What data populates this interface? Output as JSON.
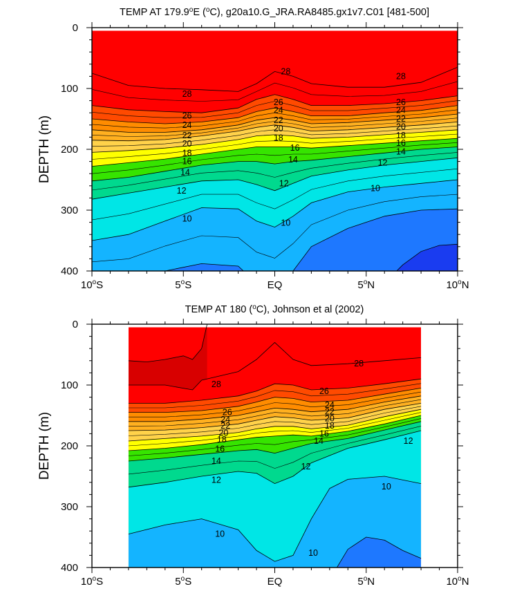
{
  "chart_data": [
    {
      "type": "contour",
      "title_prefix": "TEMP AT 179.9",
      "title_sup1": "o",
      "title_mid": "E (",
      "title_sup2": "o",
      "title_suffix": "C), g20a10.G_JRA.RA8485.gx1v7.C01 [481-500]",
      "ylabel": "DEPTH (m)",
      "xlim": [
        -10,
        10
      ],
      "ylim": [
        0,
        400
      ],
      "xticks": [
        {
          "value": -10,
          "label": "10",
          "suffix": "S"
        },
        {
          "value": -5,
          "label": "5",
          "suffix": "S"
        },
        {
          "value": 0,
          "label": "EQ",
          "suffix": ""
        },
        {
          "value": 5,
          "label": "5",
          "suffix": "N"
        },
        {
          "value": 10,
          "label": "10",
          "suffix": "N"
        }
      ],
      "yticks": [
        0,
        100,
        200,
        300,
        400
      ],
      "data_extent_x": [
        -10,
        10
      ],
      "isotherms": [
        {
          "level": 28,
          "x": [
            -10,
            -8,
            -6,
            -4,
            -2,
            -1,
            0,
            1,
            2,
            4,
            6,
            8,
            10
          ],
          "depth": [
            75,
            95,
            100,
            102,
            105,
            92,
            72,
            80,
            92,
            98,
            98,
            90,
            65
          ]
        },
        {
          "level": 26,
          "x": [
            -10,
            -8,
            -6,
            -4,
            -2,
            -1,
            0,
            1,
            2,
            4,
            6,
            8,
            10
          ],
          "depth": [
            128,
            135,
            138,
            140,
            132,
            118,
            110,
            118,
            128,
            128,
            125,
            120,
            112
          ]
        },
        {
          "level": 24,
          "x": [
            -10,
            -8,
            -6,
            -4,
            -2,
            -1,
            0,
            1,
            2,
            4,
            6,
            8,
            10
          ],
          "depth": [
            150,
            155,
            158,
            155,
            148,
            138,
            132,
            138,
            145,
            145,
            140,
            136,
            128
          ]
        },
        {
          "level": 22,
          "x": [
            -10,
            -8,
            -6,
            -4,
            -2,
            -1,
            0,
            1,
            2,
            4,
            6,
            8,
            10
          ],
          "depth": [
            168,
            172,
            172,
            168,
            160,
            152,
            148,
            152,
            158,
            156,
            152,
            148,
            142
          ]
        },
        {
          "level": 20,
          "x": [
            -10,
            -8,
            -6,
            -4,
            -2,
            -1,
            0,
            1,
            2,
            4,
            6,
            8,
            10
          ],
          "depth": [
            185,
            186,
            184,
            178,
            170,
            164,
            160,
            164,
            170,
            168,
            164,
            160,
            155
          ]
        },
        {
          "level": 18,
          "x": [
            -10,
            -8,
            -6,
            -4,
            -2,
            -1,
            0,
            1,
            2,
            4,
            6,
            8,
            10
          ],
          "depth": [
            205,
            202,
            198,
            192,
            184,
            178,
            176,
            178,
            182,
            180,
            176,
            172,
            168
          ]
        },
        {
          "level": 16,
          "x": [
            -10,
            -8,
            -6,
            -4,
            -2,
            -1,
            0,
            1,
            2,
            4,
            6,
            8,
            10
          ],
          "depth": [
            228,
            222,
            216,
            208,
            200,
            196,
            196,
            196,
            198,
            194,
            190,
            186,
            182
          ]
        },
        {
          "level": 14,
          "x": [
            -10,
            -8,
            -6,
            -4,
            -2,
            -1,
            0,
            1,
            2,
            4,
            6,
            8,
            10
          ],
          "depth": [
            252,
            246,
            236,
            226,
            220,
            220,
            224,
            220,
            218,
            212,
            206,
            200,
            196
          ]
        },
        {
          "level": 12,
          "x": [
            -10,
            -8,
            -6,
            -4,
            -2,
            -1,
            0,
            1,
            2,
            4,
            6,
            8,
            10
          ],
          "depth": [
            282,
            272,
            262,
            252,
            250,
            258,
            268,
            256,
            244,
            234,
            226,
            220,
            214
          ]
        },
        {
          "level": 10,
          "x": [
            -10,
            -8,
            -6,
            -4,
            -2,
            -1,
            0,
            1,
            2,
            4,
            6,
            8,
            10
          ],
          "depth": [
            350,
            340,
            318,
            296,
            298,
            318,
            328,
            310,
            288,
            270,
            262,
            256,
            250
          ]
        },
        {
          "level": 8,
          "x": [
            -10,
            -8,
            -6,
            -4,
            -2,
            -1,
            0,
            1,
            2,
            4,
            6,
            8,
            10
          ],
          "depth": [
            420,
            420,
            400,
            388,
            392,
            420,
            430,
            400,
            360,
            330,
            310,
            300,
            298
          ]
        },
        {
          "level": 6,
          "x": [
            6,
            7,
            8,
            9,
            10
          ],
          "depth": [
            420,
            390,
            368,
            358,
            356
          ]
        }
      ],
      "labels": [
        {
          "text": "28",
          "x": 0.6,
          "y": 72
        },
        {
          "text": "28",
          "x": 6.9,
          "y": 80
        },
        {
          "text": "28",
          "x": -4.8,
          "y": 109
        },
        {
          "text": "26",
          "x": 0.2,
          "y": 123
        },
        {
          "text": "26",
          "x": 6.9,
          "y": 123
        },
        {
          "text": "26",
          "x": -4.8,
          "y": 145
        },
        {
          "text": "24",
          "x": 0.2,
          "y": 136
        },
        {
          "text": "24",
          "x": 6.9,
          "y": 136
        },
        {
          "text": "24",
          "x": -4.8,
          "y": 160
        },
        {
          "text": "22",
          "x": 0.2,
          "y": 152
        },
        {
          "text": "22",
          "x": 6.9,
          "y": 150
        },
        {
          "text": "22",
          "x": -4.8,
          "y": 177
        },
        {
          "text": "20",
          "x": 0.2,
          "y": 166
        },
        {
          "text": "20",
          "x": 6.9,
          "y": 163
        },
        {
          "text": "20",
          "x": -4.8,
          "y": 191
        },
        {
          "text": "18",
          "x": 0.2,
          "y": 181
        },
        {
          "text": "18",
          "x": 6.9,
          "y": 177
        },
        {
          "text": "18",
          "x": -4.8,
          "y": 206
        },
        {
          "text": "16",
          "x": 1.1,
          "y": 198
        },
        {
          "text": "16",
          "x": 6.9,
          "y": 190
        },
        {
          "text": "16",
          "x": -4.8,
          "y": 220
        },
        {
          "text": "14",
          "x": 1.0,
          "y": 217
        },
        {
          "text": "14",
          "x": 6.9,
          "y": 204
        },
        {
          "text": "14",
          "x": -4.9,
          "y": 238
        },
        {
          "text": "12",
          "x": 0.5,
          "y": 256
        },
        {
          "text": "12",
          "x": 5.9,
          "y": 222
        },
        {
          "text": "12",
          "x": -5.1,
          "y": 268
        },
        {
          "text": "10",
          "x": 5.5,
          "y": 264
        },
        {
          "text": "10",
          "x": -4.8,
          "y": 314
        },
        {
          "text": "10",
          "x": 0.6,
          "y": 321
        }
      ]
    },
    {
      "type": "contour",
      "title_prefix": "TEMP AT 180 (",
      "title_sup": "o",
      "title_suffix": "C), Johnson et al (2002)",
      "ylabel": "DEPTH (m)",
      "xlim": [
        -10,
        10
      ],
      "ylim": [
        0,
        400
      ],
      "xticks": [
        {
          "value": -10,
          "label": "10",
          "suffix": "S"
        },
        {
          "value": -5,
          "label": "5",
          "suffix": "S"
        },
        {
          "value": 0,
          "label": "EQ",
          "suffix": ""
        },
        {
          "value": 5,
          "label": "5",
          "suffix": "N"
        },
        {
          "value": 10,
          "label": "10",
          "suffix": "N"
        }
      ],
      "yticks": [
        0,
        100,
        200,
        300,
        400
      ],
      "data_extent_x": [
        -8,
        8
      ],
      "isotherms": [
        {
          "level": 29,
          "x": [
            -8,
            -7,
            -6,
            -5,
            -4.5,
            -4,
            -3.7
          ],
          "depth": [
            60,
            62,
            58,
            52,
            58,
            40,
            0
          ]
        },
        {
          "level": 28,
          "x": [
            -8,
            -6,
            -4.5,
            -4,
            -2,
            -1,
            0,
            1,
            2,
            4,
            6,
            8
          ],
          "depth": [
            100,
            100,
            108,
            92,
            78,
            58,
            30,
            58,
            68,
            65,
            60,
            55
          ]
        },
        {
          "level": 26,
          "x": [
            -8,
            -6,
            -4,
            -2,
            -1,
            0,
            1,
            2,
            4,
            6,
            8
          ],
          "depth": [
            130,
            130,
            125,
            118,
            110,
            98,
            100,
            108,
            105,
            98,
            90
          ]
        },
        {
          "level": 24,
          "x": [
            -8,
            -6,
            -4,
            -2,
            -1,
            0,
            1,
            2,
            4,
            6,
            8
          ],
          "depth": [
            145,
            145,
            142,
            135,
            128,
            120,
            122,
            128,
            125,
            115,
            105
          ]
        },
        {
          "level": 22,
          "x": [
            -8,
            -6,
            -4,
            -2,
            -1,
            0,
            1,
            2,
            4,
            6,
            8
          ],
          "depth": [
            160,
            160,
            156,
            150,
            144,
            138,
            140,
            144,
            140,
            128,
            118
          ]
        },
        {
          "level": 20,
          "x": [
            -8,
            -6,
            -4,
            -2,
            -1,
            0,
            1,
            2,
            4,
            6,
            8
          ],
          "depth": [
            175,
            174,
            170,
            164,
            158,
            152,
            154,
            158,
            154,
            140,
            130
          ]
        },
        {
          "level": 18,
          "x": [
            -8,
            -6,
            -4,
            -2,
            -1,
            0,
            1,
            2,
            4,
            6,
            8
          ],
          "depth": [
            192,
            188,
            184,
            178,
            172,
            168,
            168,
            172,
            166,
            152,
            140
          ]
        },
        {
          "level": 16,
          "x": [
            -8,
            -6,
            -4,
            -2,
            -1,
            0,
            1,
            2,
            4,
            6,
            8
          ],
          "depth": [
            208,
            204,
            198,
            190,
            186,
            184,
            182,
            184,
            176,
            164,
            150
          ]
        },
        {
          "level": 14,
          "x": [
            -8,
            -6,
            -4,
            -2,
            -1,
            0,
            1,
            2,
            4,
            6,
            8
          ],
          "depth": [
            225,
            220,
            214,
            208,
            206,
            212,
            204,
            196,
            188,
            174,
            160
          ]
        },
        {
          "level": 12,
          "x": [
            -8,
            -6,
            -4,
            -2,
            -1,
            0,
            1,
            2,
            4,
            6,
            8
          ],
          "depth": [
            268,
            260,
            250,
            242,
            245,
            262,
            250,
            228,
            204,
            190,
            175
          ]
        },
        {
          "level": 10,
          "x": [
            -8,
            -6,
            -4,
            -2,
            -1,
            0,
            1,
            2,
            3,
            4,
            6,
            8
          ],
          "depth": [
            345,
            330,
            320,
            338,
            372,
            390,
            380,
            320,
            270,
            255,
            250,
            262
          ]
        },
        {
          "level": 8,
          "x": [
            3.4,
            4,
            5,
            6,
            7,
            8
          ],
          "depth": [
            400,
            370,
            350,
            355,
            372,
            385
          ]
        }
      ],
      "labels": [
        {
          "text": "28",
          "x": 4.6,
          "y": 65
        },
        {
          "text": "28",
          "x": -3.2,
          "y": 99
        },
        {
          "text": "26",
          "x": 2.7,
          "y": 110
        },
        {
          "text": "26",
          "x": -2.6,
          "y": 145
        },
        {
          "text": "24",
          "x": 3.0,
          "y": 133
        },
        {
          "text": "24",
          "x": -2.7,
          "y": 157
        },
        {
          "text": "22",
          "x": 3.0,
          "y": 144
        },
        {
          "text": "22",
          "x": -2.7,
          "y": 167
        },
        {
          "text": "20",
          "x": 3.0,
          "y": 155
        },
        {
          "text": "20",
          "x": -2.8,
          "y": 179
        },
        {
          "text": "18",
          "x": 3.0,
          "y": 167
        },
        {
          "text": "18",
          "x": -2.9,
          "y": 190
        },
        {
          "text": "16",
          "x": 2.7,
          "y": 180
        },
        {
          "text": "16",
          "x": -3.0,
          "y": 205
        },
        {
          "text": "14",
          "x": 2.4,
          "y": 192
        },
        {
          "text": "14",
          "x": -3.2,
          "y": 225
        },
        {
          "text": "12",
          "x": 7.3,
          "y": 192
        },
        {
          "text": "12",
          "x": 1.7,
          "y": 234
        },
        {
          "text": "12",
          "x": -3.2,
          "y": 256
        },
        {
          "text": "10",
          "x": 6.1,
          "y": 267
        },
        {
          "text": "10",
          "x": -3.0,
          "y": 345
        },
        {
          "text": "10",
          "x": 2.1,
          "y": 376
        }
      ]
    }
  ]
}
